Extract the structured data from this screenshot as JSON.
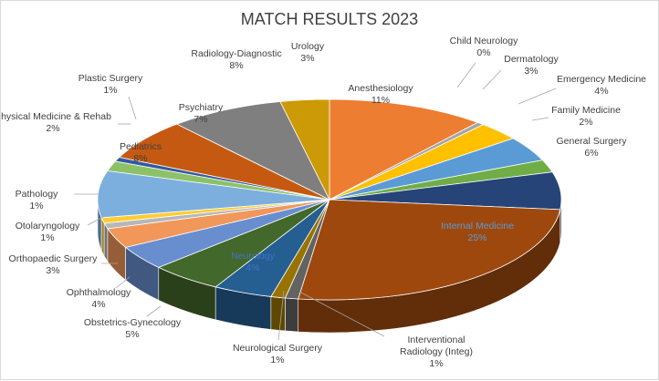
{
  "chart_data": {
    "type": "pie",
    "style": "3d",
    "title": "MATCH RESULTS 2023",
    "legend": "none",
    "slices": [
      {
        "name": "Anesthesiology",
        "label": "Anesthesiology",
        "pct_label": "11%",
        "value": 11.0,
        "color": "#ed7d31",
        "label_inside": true,
        "label_color": "#404040"
      },
      {
        "name": "Child Neurology",
        "label": "Child Neurology",
        "pct_label": "0%",
        "value": 0.5,
        "color": "#a5a5a5"
      },
      {
        "name": "Dermatology",
        "label": "Dermatology",
        "pct_label": "3%",
        "value": 3.0,
        "color": "#ffc000"
      },
      {
        "name": "Emergency Medicine",
        "label": "Emergency Medicine",
        "pct_label": "4%",
        "value": 4.0,
        "color": "#5b9bd5"
      },
      {
        "name": "Family Medicine",
        "label": "Family Medicine",
        "pct_label": "2%",
        "value": 2.0,
        "color": "#70ad47"
      },
      {
        "name": "General Surgery",
        "label": "General Surgery",
        "pct_label": "6%",
        "value": 6.0,
        "color": "#264478"
      },
      {
        "name": "Internal Medicine",
        "label": "Internal Medicine",
        "pct_label": "25%",
        "value": 25.5,
        "color": "#9e480e",
        "label_inside": true,
        "label_color": "#5b9bd5"
      },
      {
        "name": "Interventional Radiology (Integ)",
        "label": "Interventional Radiology (Integ)",
        "pct_label": "1%",
        "value": 0.9,
        "color": "#636363"
      },
      {
        "name": "Neurological Surgery",
        "label": "Neurological Surgery",
        "pct_label": "1%",
        "value": 1.0,
        "color": "#997300"
      },
      {
        "name": "Neurology",
        "label": "Neurology",
        "pct_label": "4%",
        "value": 4.1,
        "color": "#255e91",
        "label_inside": true,
        "label_color": "#4472c4"
      },
      {
        "name": "Obstetrics-Gynecology",
        "label": "Obstetrics-Gynecology",
        "pct_label": "5%",
        "value": 5.0,
        "color": "#43682b"
      },
      {
        "name": "Ophthalmology",
        "label": "Ophthalmology",
        "pct_label": "4%",
        "value": 3.9,
        "color": "#698ed0"
      },
      {
        "name": "Orthopaedic Surgery",
        "label": "Orthopaedic Surgery",
        "pct_label": "3%",
        "value": 3.2,
        "color": "#f1975a"
      },
      {
        "name": "Otolaryngology",
        "label": "Otolaryngology",
        "pct_label": "1%",
        "value": 0.9,
        "color": "#b7b7b7"
      },
      {
        "name": "Pathology",
        "label": "Pathology",
        "pct_label": "1%",
        "value": 0.9,
        "color": "#ffcd33"
      },
      {
        "name": "Pediatrics",
        "label": "Pediatrics",
        "pct_label": "8%",
        "value": 7.5,
        "color": "#7cafdd",
        "label_inside": true,
        "label_color": "#404040"
      },
      {
        "name": "Physical Medicine & Rehab",
        "label": "Physical Medicine & Rehab",
        "pct_label": "2%",
        "value": 1.6,
        "color": "#8cc168"
      },
      {
        "name": "Plastic Surgery",
        "label": "Plastic Surgery",
        "pct_label": "1%",
        "value": 0.7,
        "color": "#335aa1"
      },
      {
        "name": "Psychiatry",
        "label": "Psychiatry",
        "pct_label": "7%",
        "value": 6.6,
        "color": "#c65911",
        "label_inside": true,
        "label_color": "#404040"
      },
      {
        "name": "Radiology-Diagnostic",
        "label": "Radiology-Diagnostic",
        "pct_label": "8%",
        "value": 8.0,
        "color": "#7f7f7f"
      },
      {
        "name": "Urology",
        "label": "Urology",
        "pct_label": "3%",
        "value": 3.4,
        "color": "#cc9a06"
      }
    ]
  }
}
